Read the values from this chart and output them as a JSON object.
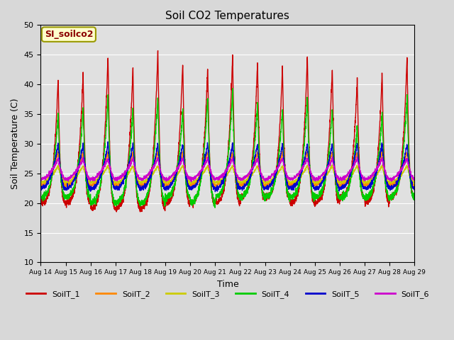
{
  "title": "Soil CO2 Temperatures",
  "xlabel": "Time",
  "ylabel": "Soil Temperature (C)",
  "ylim": [
    10,
    50
  ],
  "annotation_text": "SI_soilco2",
  "fig_bg_color": "#d8d8d8",
  "plot_bg_color": "#e0e0e0",
  "x_tick_labels": [
    "Aug 14",
    "Aug 15",
    "Aug 16",
    "Aug 17",
    "Aug 18",
    "Aug 19",
    "Aug 20",
    "Aug 21",
    "Aug 22",
    "Aug 23",
    "Aug 24",
    "Aug 25",
    "Aug 26",
    "Aug 27",
    "Aug 28",
    "Aug 29"
  ],
  "series": [
    {
      "name": "SoilT_1",
      "color": "#cc0000"
    },
    {
      "name": "SoilT_2",
      "color": "#ff8800"
    },
    {
      "name": "SoilT_3",
      "color": "#cccc00"
    },
    {
      "name": "SoilT_4",
      "color": "#00cc00"
    },
    {
      "name": "SoilT_5",
      "color": "#0000cc"
    },
    {
      "name": "SoilT_6",
      "color": "#cc00cc"
    }
  ]
}
